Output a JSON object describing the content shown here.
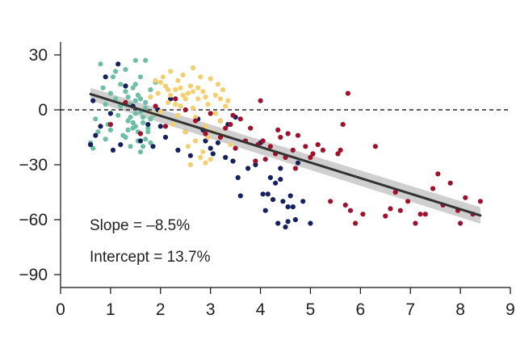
{
  "chart_data": {
    "type": "scatter",
    "title": "",
    "xlabel": "",
    "ylabel": "",
    "xlim": [
      0,
      9
    ],
    "ylim": [
      -95,
      35
    ],
    "x_ticks": [
      0,
      1,
      2,
      3,
      4,
      5,
      6,
      7,
      8,
      9
    ],
    "y_ticks": [
      30,
      0,
      -30,
      -60,
      -90
    ],
    "x_tick_labels": [
      "0",
      "1",
      "2",
      "3",
      "4",
      "5",
      "6",
      "7",
      "8",
      "9"
    ],
    "y_tick_labels": [
      "30",
      "0",
      "−30",
      "−60",
      "−90"
    ],
    "grid": false,
    "legend": "none",
    "reference_line": {
      "y": 0,
      "style": "dashed",
      "color": "#000000"
    },
    "annotations": {
      "slope": "Slope = –8.5%",
      "intercept": "Intercept = 13.7%"
    },
    "fit_line": {
      "x": [
        0.6,
        8.4
      ],
      "y": [
        8.6,
        -57.7
      ],
      "band_halfwidth_ends": [
        3.5,
        4.5
      ],
      "color": "#333333",
      "band_color": "#bfbfbf"
    },
    "series": [
      {
        "color": "#6cbfa4",
        "points": [
          [
            0.6,
            -18
          ],
          [
            0.65,
            -21
          ],
          [
            0.7,
            -5
          ],
          [
            0.75,
            -12
          ],
          [
            0.8,
            25
          ],
          [
            0.85,
            12
          ],
          [
            0.9,
            3
          ],
          [
            0.95,
            -8
          ],
          [
            1.0,
            9
          ],
          [
            1.05,
            18
          ],
          [
            1.1,
            6
          ],
          [
            1.15,
            -3
          ],
          [
            1.2,
            14
          ],
          [
            1.25,
            -14
          ],
          [
            1.3,
            22
          ],
          [
            1.35,
            -6
          ],
          [
            1.4,
            3
          ],
          [
            1.45,
            -10
          ],
          [
            1.5,
            27
          ],
          [
            1.5,
            -2
          ],
          [
            1.55,
            8
          ],
          [
            1.55,
            -17
          ],
          [
            1.6,
            -23
          ],
          [
            1.6,
            18
          ],
          [
            1.65,
            -7
          ],
          [
            1.7,
            27
          ],
          [
            1.7,
            1
          ],
          [
            1.75,
            -12
          ],
          [
            1.8,
            11
          ],
          [
            1.8,
            -18
          ],
          [
            1.85,
            -3
          ],
          [
            1.9,
            15
          ],
          [
            1.4,
            -20
          ],
          [
            1.45,
            12
          ],
          [
            1.3,
            -15
          ],
          [
            1.2,
            2
          ],
          [
            1.6,
            6
          ],
          [
            1.65,
            -4
          ],
          [
            1.75,
            -10
          ],
          [
            1.55,
            -12
          ],
          [
            1.35,
            7
          ],
          [
            1.5,
            -9
          ],
          [
            1.7,
            -16
          ],
          [
            1.0,
            -11
          ],
          [
            1.1,
            21
          ],
          [
            0.9,
            -16
          ],
          [
            1.6,
            -1
          ],
          [
            1.4,
            -4
          ],
          [
            1.5,
            5
          ],
          [
            1.65,
            -20
          ],
          [
            1.45,
            -7
          ],
          [
            1.7,
            4
          ],
          [
            1.3,
            10
          ],
          [
            1.8,
            -5
          ],
          [
            1.35,
            -11
          ],
          [
            1.5,
            14
          ]
        ]
      },
      {
        "color": "#14215e",
        "points": [
          [
            0.6,
            -19
          ],
          [
            0.65,
            5
          ],
          [
            0.7,
            -14
          ],
          [
            0.8,
            -9
          ],
          [
            0.9,
            18
          ],
          [
            1.0,
            -2
          ],
          [
            1.05,
            -22
          ],
          [
            1.15,
            25
          ],
          [
            1.2,
            -19
          ],
          [
            1.3,
            13
          ],
          [
            1.45,
            2
          ],
          [
            1.6,
            -17
          ],
          [
            1.75,
            -8
          ],
          [
            1.85,
            -20
          ],
          [
            1.95,
            0
          ],
          [
            2.1,
            -15
          ],
          [
            2.2,
            6
          ],
          [
            2.35,
            -22
          ],
          [
            2.5,
            -12
          ],
          [
            2.6,
            -25
          ],
          [
            2.75,
            -5
          ],
          [
            2.9,
            -17
          ],
          [
            3.05,
            -24
          ],
          [
            3.15,
            -18
          ],
          [
            3.35,
            -8
          ],
          [
            3.45,
            -28
          ],
          [
            3.55,
            -37
          ],
          [
            3.6,
            -47
          ],
          [
            3.75,
            -32
          ],
          [
            3.9,
            -30
          ],
          [
            4.0,
            -18
          ],
          [
            4.05,
            -46
          ],
          [
            4.1,
            -55
          ],
          [
            4.15,
            -46
          ],
          [
            4.2,
            -37
          ],
          [
            4.25,
            -49
          ],
          [
            4.3,
            -40
          ],
          [
            4.4,
            -32
          ],
          [
            4.45,
            -50
          ],
          [
            4.5,
            -64
          ],
          [
            4.55,
            -61
          ],
          [
            4.6,
            -47
          ],
          [
            4.65,
            -53
          ],
          [
            4.7,
            -60
          ],
          [
            4.75,
            -29
          ],
          [
            4.85,
            -50
          ],
          [
            5.0,
            -62
          ],
          [
            3.2,
            -6
          ],
          [
            3.3,
            -26
          ],
          [
            4.4,
            -38
          ],
          [
            4.55,
            -53
          ],
          [
            4.35,
            -62
          ],
          [
            2.85,
            -11
          ],
          [
            2.0,
            -9
          ],
          [
            3.0,
            -21
          ],
          [
            3.5,
            -4
          ]
        ]
      },
      {
        "color": "#f5cf6e",
        "points": [
          [
            1.8,
            7
          ],
          [
            1.85,
            -2
          ],
          [
            1.9,
            16
          ],
          [
            1.95,
            9
          ],
          [
            2.0,
            -1
          ],
          [
            2.1,
            13
          ],
          [
            2.15,
            4
          ],
          [
            2.2,
            21
          ],
          [
            2.25,
            -8
          ],
          [
            2.3,
            11
          ],
          [
            2.35,
            16
          ],
          [
            2.4,
            2
          ],
          [
            2.45,
            19
          ],
          [
            2.5,
            -12
          ],
          [
            2.55,
            9
          ],
          [
            2.6,
            13
          ],
          [
            2.65,
            23
          ],
          [
            2.7,
            -4
          ],
          [
            2.75,
            6
          ],
          [
            2.8,
            -26
          ],
          [
            2.85,
            10
          ],
          [
            2.9,
            -29
          ],
          [
            2.95,
            3
          ],
          [
            3.0,
            17
          ],
          [
            3.05,
            -12
          ],
          [
            3.1,
            8
          ],
          [
            3.15,
            14
          ],
          [
            3.2,
            -6
          ],
          [
            3.25,
            11
          ],
          [
            3.3,
            2
          ],
          [
            3.35,
            5
          ],
          [
            3.4,
            -19
          ],
          [
            2.6,
            -30
          ],
          [
            2.7,
            -17
          ],
          [
            2.8,
            18
          ],
          [
            2.9,
            -9
          ],
          [
            2.4,
            12
          ],
          [
            2.5,
            6
          ],
          [
            2.2,
            8
          ],
          [
            2.0,
            15
          ],
          [
            3.1,
            -2
          ],
          [
            2.95,
            -15
          ],
          [
            2.35,
            -3
          ],
          [
            2.65,
            1
          ],
          [
            2.55,
            -20
          ],
          [
            2.85,
            -23
          ],
          [
            3.0,
            -27
          ],
          [
            2.75,
            12
          ],
          [
            2.45,
            8
          ],
          [
            2.15,
            11
          ],
          [
            3.25,
            -14
          ],
          [
            2.05,
            18
          ],
          [
            2.3,
            3
          ],
          [
            2.65,
            10
          ],
          [
            2.9,
            7
          ],
          [
            3.2,
            6
          ]
        ]
      },
      {
        "color": "#a0112b",
        "points": [
          [
            1.0,
            -8
          ],
          [
            1.3,
            4
          ],
          [
            1.6,
            -13
          ],
          [
            1.9,
            2
          ],
          [
            2.1,
            -9
          ],
          [
            2.3,
            6
          ],
          [
            2.5,
            0
          ],
          [
            2.7,
            -6
          ],
          [
            2.9,
            -13
          ],
          [
            3.0,
            -2
          ],
          [
            3.2,
            -15
          ],
          [
            3.3,
            -10
          ],
          [
            3.4,
            -8
          ],
          [
            3.5,
            -21
          ],
          [
            3.6,
            -5
          ],
          [
            3.7,
            -17
          ],
          [
            3.8,
            -10
          ],
          [
            3.9,
            -28
          ],
          [
            4.0,
            5
          ],
          [
            4.05,
            -17
          ],
          [
            4.1,
            -27
          ],
          [
            4.2,
            -20
          ],
          [
            4.3,
            -24
          ],
          [
            4.35,
            -11
          ],
          [
            4.4,
            -15
          ],
          [
            4.5,
            -26
          ],
          [
            4.55,
            -13
          ],
          [
            4.65,
            -22
          ],
          [
            4.7,
            -32
          ],
          [
            4.75,
            -14
          ],
          [
            4.9,
            -20
          ],
          [
            5.0,
            -26
          ],
          [
            5.05,
            -24
          ],
          [
            5.25,
            -22
          ],
          [
            5.4,
            -50
          ],
          [
            5.55,
            -24
          ],
          [
            5.6,
            -22
          ],
          [
            5.65,
            -8
          ],
          [
            5.7,
            -52
          ],
          [
            5.75,
            9
          ],
          [
            5.8,
            -55
          ],
          [
            5.9,
            -62
          ],
          [
            6.05,
            -57
          ],
          [
            6.3,
            -20
          ],
          [
            6.5,
            -58
          ],
          [
            6.6,
            -54
          ],
          [
            6.7,
            -45
          ],
          [
            6.8,
            -55
          ],
          [
            6.95,
            -50
          ],
          [
            7.1,
            -62
          ],
          [
            7.2,
            -57
          ],
          [
            7.3,
            -57
          ],
          [
            7.45,
            -43
          ],
          [
            7.55,
            -35
          ],
          [
            7.65,
            -52
          ],
          [
            7.8,
            -40
          ],
          [
            7.95,
            -55
          ],
          [
            8.0,
            -62
          ],
          [
            8.1,
            -48
          ],
          [
            8.25,
            -57
          ],
          [
            8.4,
            -50
          ],
          [
            3.45,
            -3
          ],
          [
            3.95,
            -19
          ],
          [
            5.15,
            -19
          ]
        ]
      }
    ]
  }
}
